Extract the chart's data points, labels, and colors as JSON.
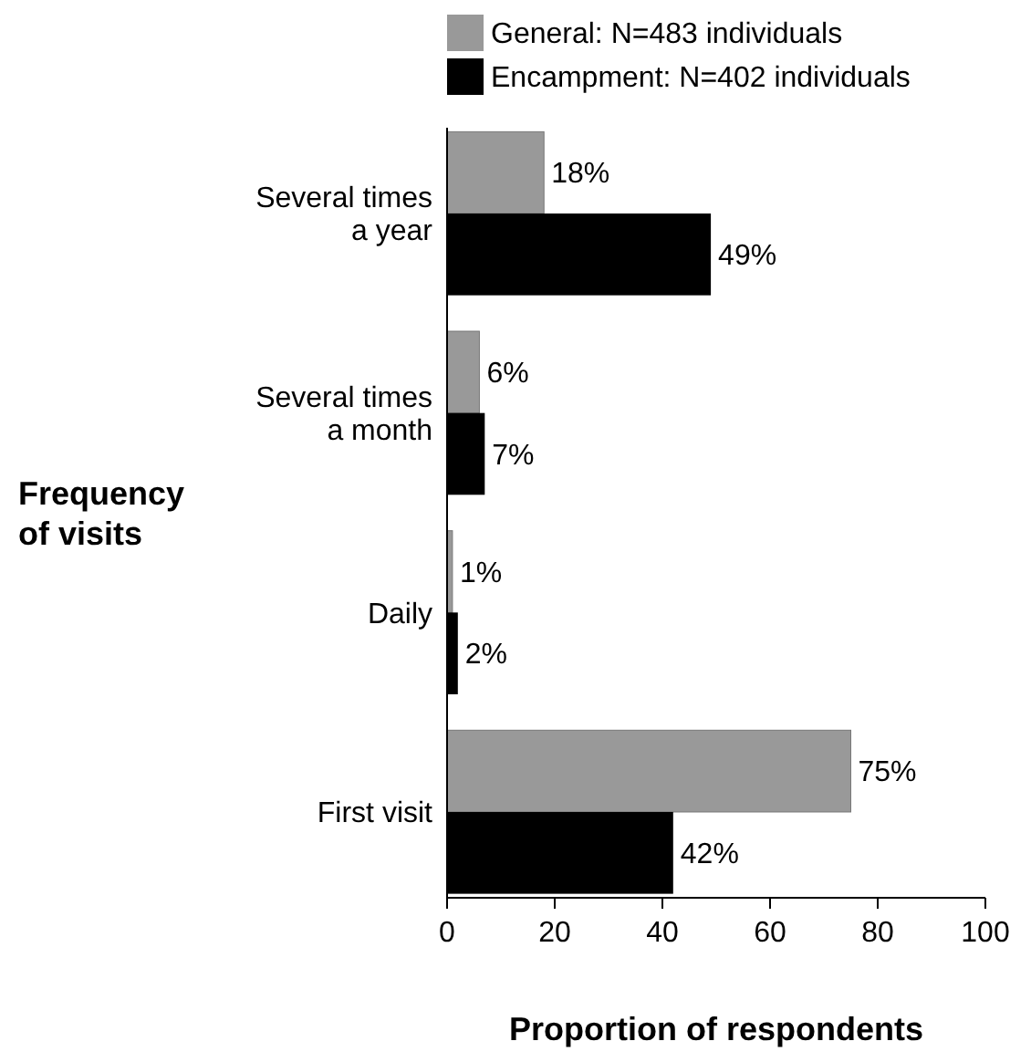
{
  "chart_data": {
    "type": "bar",
    "orientation": "horizontal",
    "xlabel": "Proportion of respondents",
    "ylabel": "Frequency of visits",
    "categories": [
      "Several times a year",
      "Several times a month",
      "Daily",
      "First visit"
    ],
    "series": [
      {
        "name": "General: N=483 individuals",
        "color": "#999999",
        "values": [
          18,
          6,
          1,
          75
        ],
        "value_labels": [
          "18%",
          "6%",
          "1%",
          "75%"
        ]
      },
      {
        "name": "Encampment: N=402 individuals",
        "color": "#000000",
        "values": [
          49,
          7,
          2,
          42
        ],
        "value_labels": [
          "49%",
          "7%",
          "2%",
          "42%"
        ]
      }
    ],
    "xlim": [
      0,
      100
    ],
    "xticks": [
      0,
      20,
      40,
      60,
      80,
      100
    ],
    "legend": "top",
    "grid": false
  }
}
